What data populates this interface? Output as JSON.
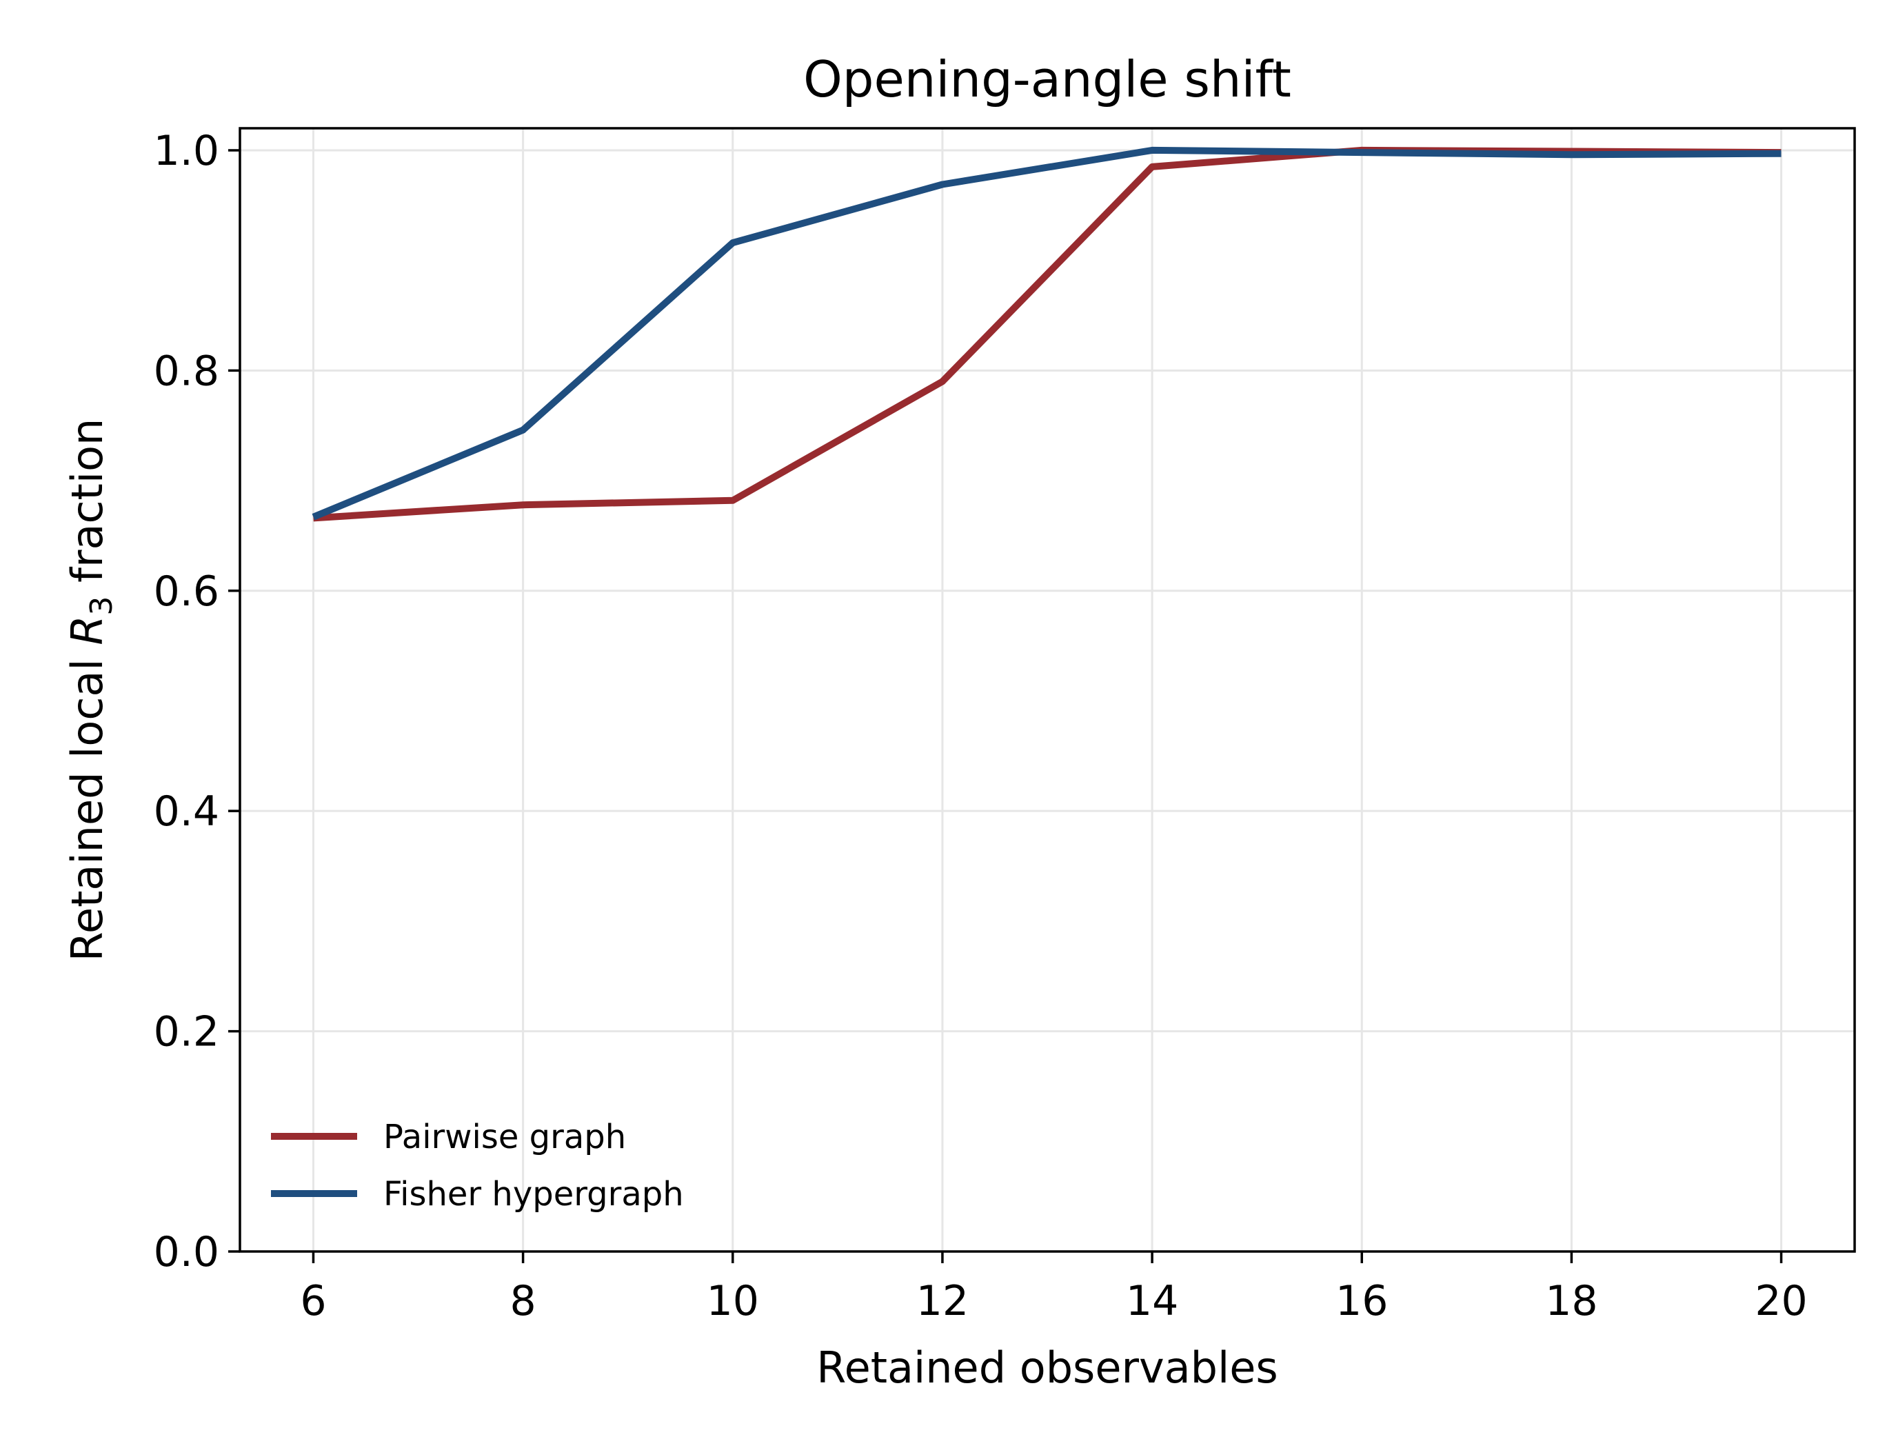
{
  "chart_data": {
    "type": "line",
    "title": "Opening-angle shift",
    "xlabel": "Retained observables",
    "ylabel_prefix": "Retained local ",
    "ylabel_symbol": "R",
    "ylabel_subscript": "3",
    "ylabel_suffix": " fraction",
    "x": [
      6,
      8,
      10,
      12,
      14,
      16,
      18,
      20
    ],
    "xlim": [
      5.3,
      20.7
    ],
    "ylim": [
      0.0,
      1.02
    ],
    "xticks": [
      6,
      8,
      10,
      12,
      14,
      16,
      18,
      20
    ],
    "yticks": [
      0.0,
      0.2,
      0.4,
      0.6,
      0.8,
      1.0
    ],
    "grid": true,
    "legend_position": "lower-left",
    "series": [
      {
        "name": "Pairwise graph",
        "color": "#982b2f",
        "values": [
          0.666,
          0.678,
          0.682,
          0.79,
          0.985,
          1.0,
          0.999,
          0.998
        ]
      },
      {
        "name": "Fisher hypergraph",
        "color": "#1f4e7f",
        "values": [
          0.667,
          0.746,
          0.916,
          0.969,
          1.0,
          0.998,
          0.996,
          0.997
        ]
      }
    ]
  }
}
